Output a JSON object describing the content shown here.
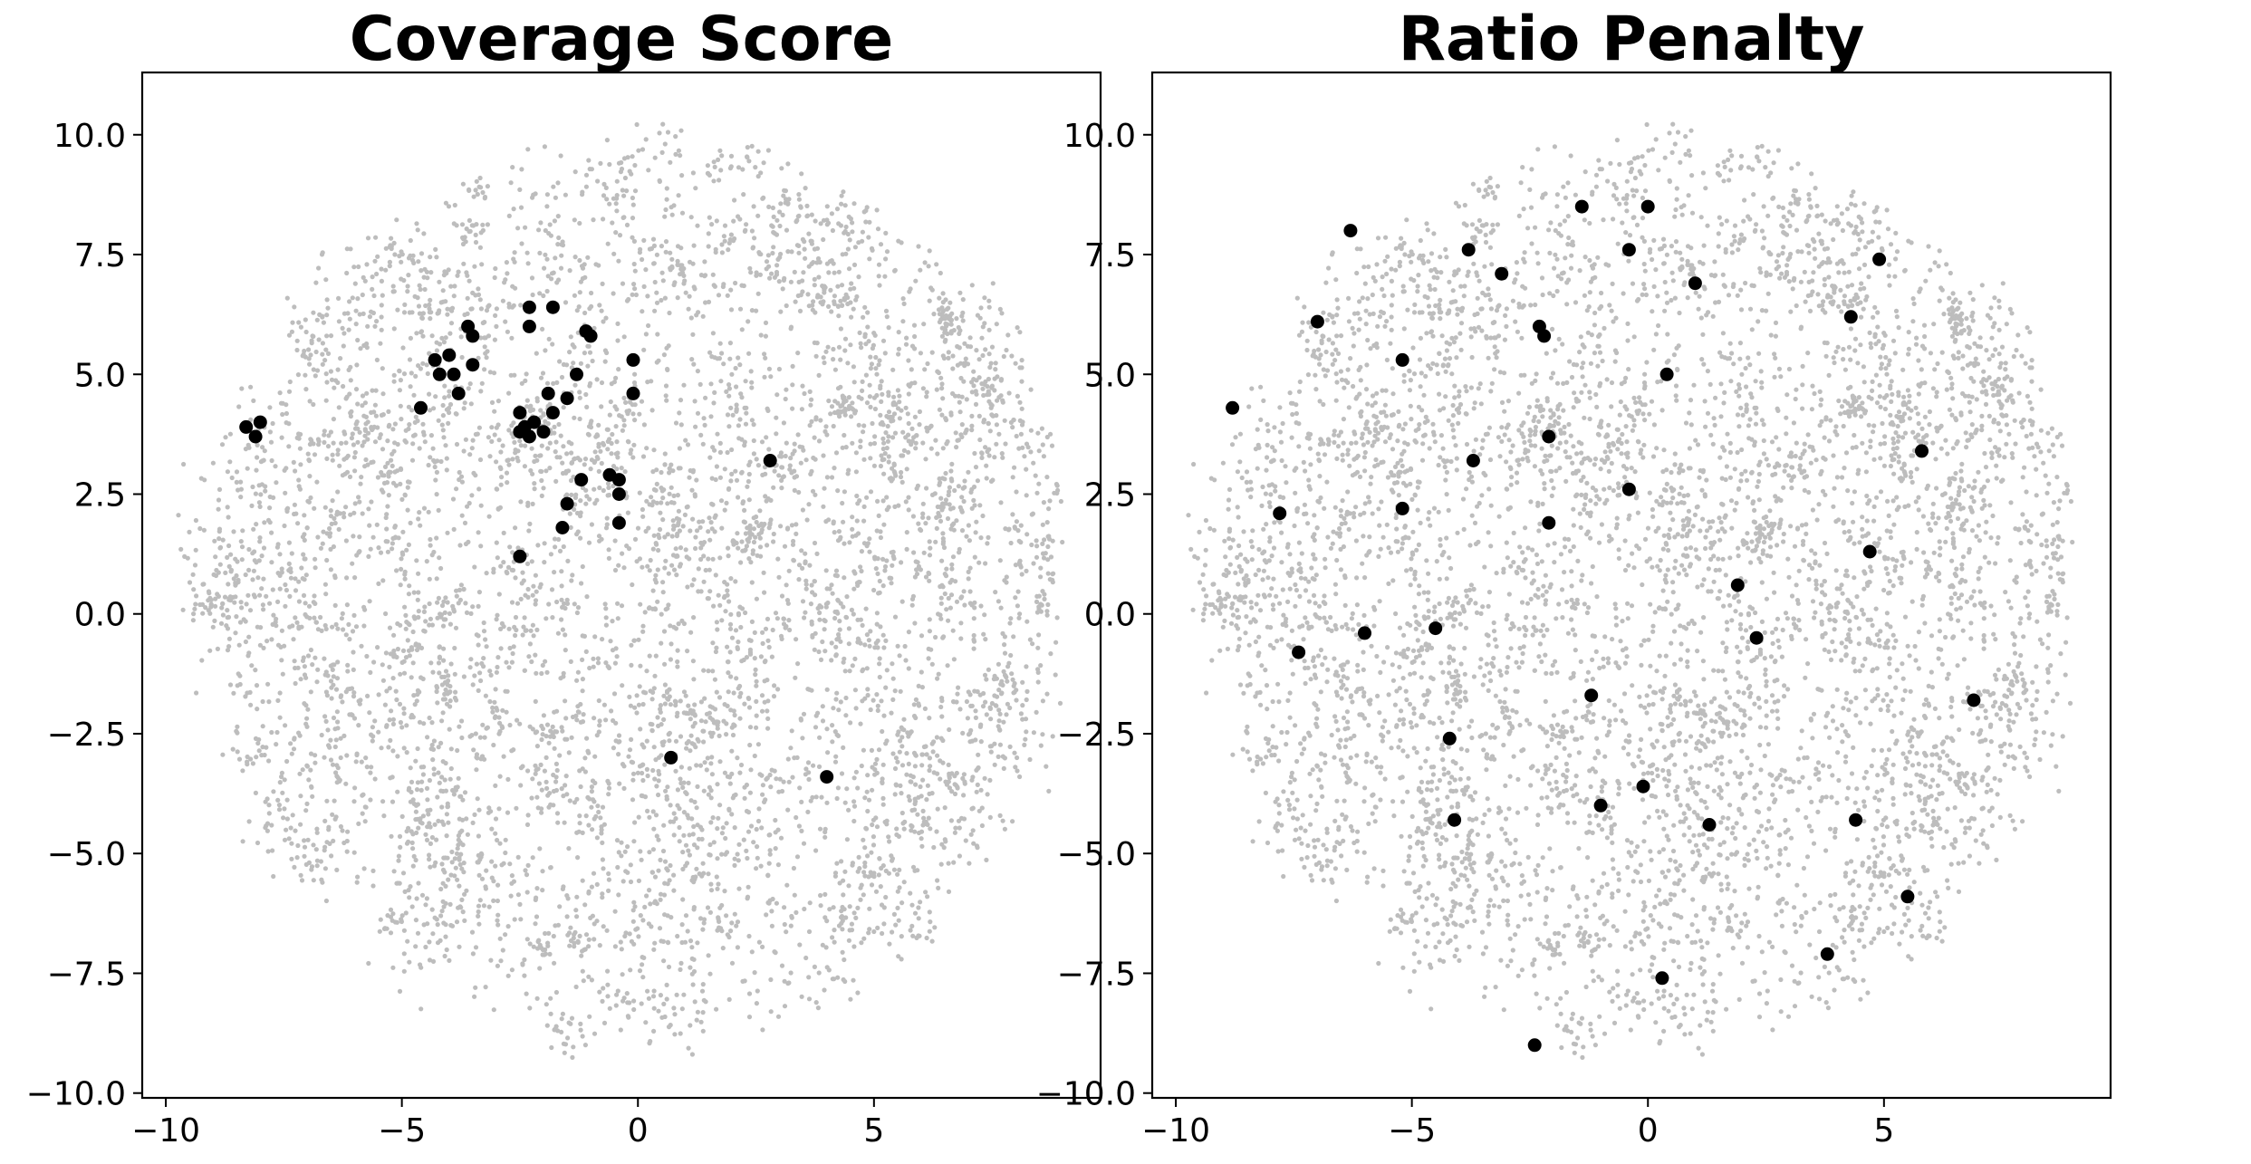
{
  "chart_data": [
    {
      "type": "scatter",
      "title": "Coverage Score",
      "xlabel": "",
      "ylabel": "",
      "xlim": [
        -10.5,
        9.8
      ],
      "ylim": [
        -10.1,
        11.3
      ],
      "xticks": [
        -10,
        -5,
        0,
        5
      ],
      "yticks": [
        -10.0,
        -7.5,
        -5.0,
        -2.5,
        0.0,
        2.5,
        5.0,
        7.5,
        10.0
      ],
      "xtick_labels": [
        "−10",
        "−5",
        "0",
        "5"
      ],
      "ytick_labels": [
        "−10.0",
        "−7.5",
        "−5.0",
        "−2.5",
        "0.0",
        "2.5",
        "5.0",
        "7.5",
        "10.0"
      ],
      "grid": false,
      "background_color": "#bdbdbd",
      "highlight_color": "#000000",
      "background_points": {
        "count": 6000,
        "description": "dense cloud of gray points roughly filling a disk of radius about 9.5 centered near (0, 0.5)"
      },
      "highlighted_points": {
        "x": [
          -8.3,
          -8.0,
          -8.1,
          -4.6,
          -4.3,
          -4.2,
          -4.0,
          -3.9,
          -3.8,
          -3.6,
          -3.5,
          -3.5,
          -2.3,
          -2.3,
          -1.8,
          -1.1,
          -1.0,
          -0.1,
          -0.1,
          -2.5,
          -2.4,
          -2.3,
          -2.2,
          -2.0,
          -1.9,
          -1.8,
          -1.5,
          -1.3,
          -2.5,
          -1.2,
          -1.5,
          -0.6,
          -0.4,
          -0.4,
          -1.6,
          -0.4,
          -2.5,
          2.8,
          0.7,
          4.0
        ],
        "y": [
          3.9,
          4.0,
          3.7,
          4.3,
          5.3,
          5.0,
          5.4,
          5.0,
          4.6,
          6.0,
          5.8,
          5.2,
          6.4,
          6.0,
          6.4,
          5.9,
          5.8,
          5.3,
          4.6,
          4.2,
          3.9,
          3.7,
          4.0,
          3.8,
          4.6,
          4.2,
          4.5,
          5.0,
          3.8,
          2.8,
          2.3,
          2.9,
          2.8,
          2.5,
          1.8,
          1.9,
          1.2,
          3.2,
          -3.0,
          -3.4
        ]
      }
    },
    {
      "type": "scatter",
      "title": "Ratio Penalty",
      "xlabel": "",
      "ylabel": "",
      "xlim": [
        -10.5,
        9.8
      ],
      "ylim": [
        -10.1,
        11.3
      ],
      "xticks": [
        -10,
        -5,
        0,
        5
      ],
      "yticks": [
        -10.0,
        -7.5,
        -5.0,
        -2.5,
        0.0,
        2.5,
        5.0,
        7.5,
        10.0
      ],
      "xtick_labels": [
        "−10",
        "−5",
        "0",
        "5"
      ],
      "ytick_labels": [
        "−10.0",
        "−7.5",
        "−5.0",
        "−2.5",
        "0.0",
        "2.5",
        "5.0",
        "7.5",
        "10.0"
      ],
      "grid": false,
      "background_color": "#bdbdbd",
      "highlight_color": "#000000",
      "background_points": {
        "count": 6000,
        "description": "dense cloud of gray points roughly filling a disk of radius about 9.5 centered near (0, 0.5)"
      },
      "highlighted_points": {
        "x": [
          -6.3,
          -1.4,
          0.0,
          -3.8,
          -3.1,
          -0.4,
          1.0,
          4.9,
          -7.0,
          -2.3,
          -2.2,
          4.3,
          -5.2,
          0.4,
          -8.8,
          -2.1,
          -3.7,
          5.8,
          -7.8,
          -5.2,
          -0.4,
          -2.1,
          4.7,
          1.9,
          -6.0,
          -4.5,
          2.3,
          -7.4,
          6.9,
          -1.2,
          -4.2,
          -0.1,
          -1.0,
          -4.1,
          1.3,
          4.4,
          5.5,
          3.8,
          0.3,
          -2.4
        ],
        "y": [
          8.0,
          8.5,
          8.5,
          7.6,
          7.1,
          7.6,
          6.9,
          7.4,
          6.1,
          6.0,
          5.8,
          6.2,
          5.3,
          5.0,
          4.3,
          3.7,
          3.2,
          3.4,
          2.1,
          2.2,
          2.6,
          1.9,
          1.3,
          0.6,
          -0.4,
          -0.3,
          -0.5,
          -0.8,
          -1.8,
          -1.7,
          -2.6,
          -3.6,
          -4.0,
          -4.3,
          -4.4,
          -4.3,
          -5.9,
          -7.1,
          -7.6,
          -9.0
        ]
      }
    }
  ]
}
